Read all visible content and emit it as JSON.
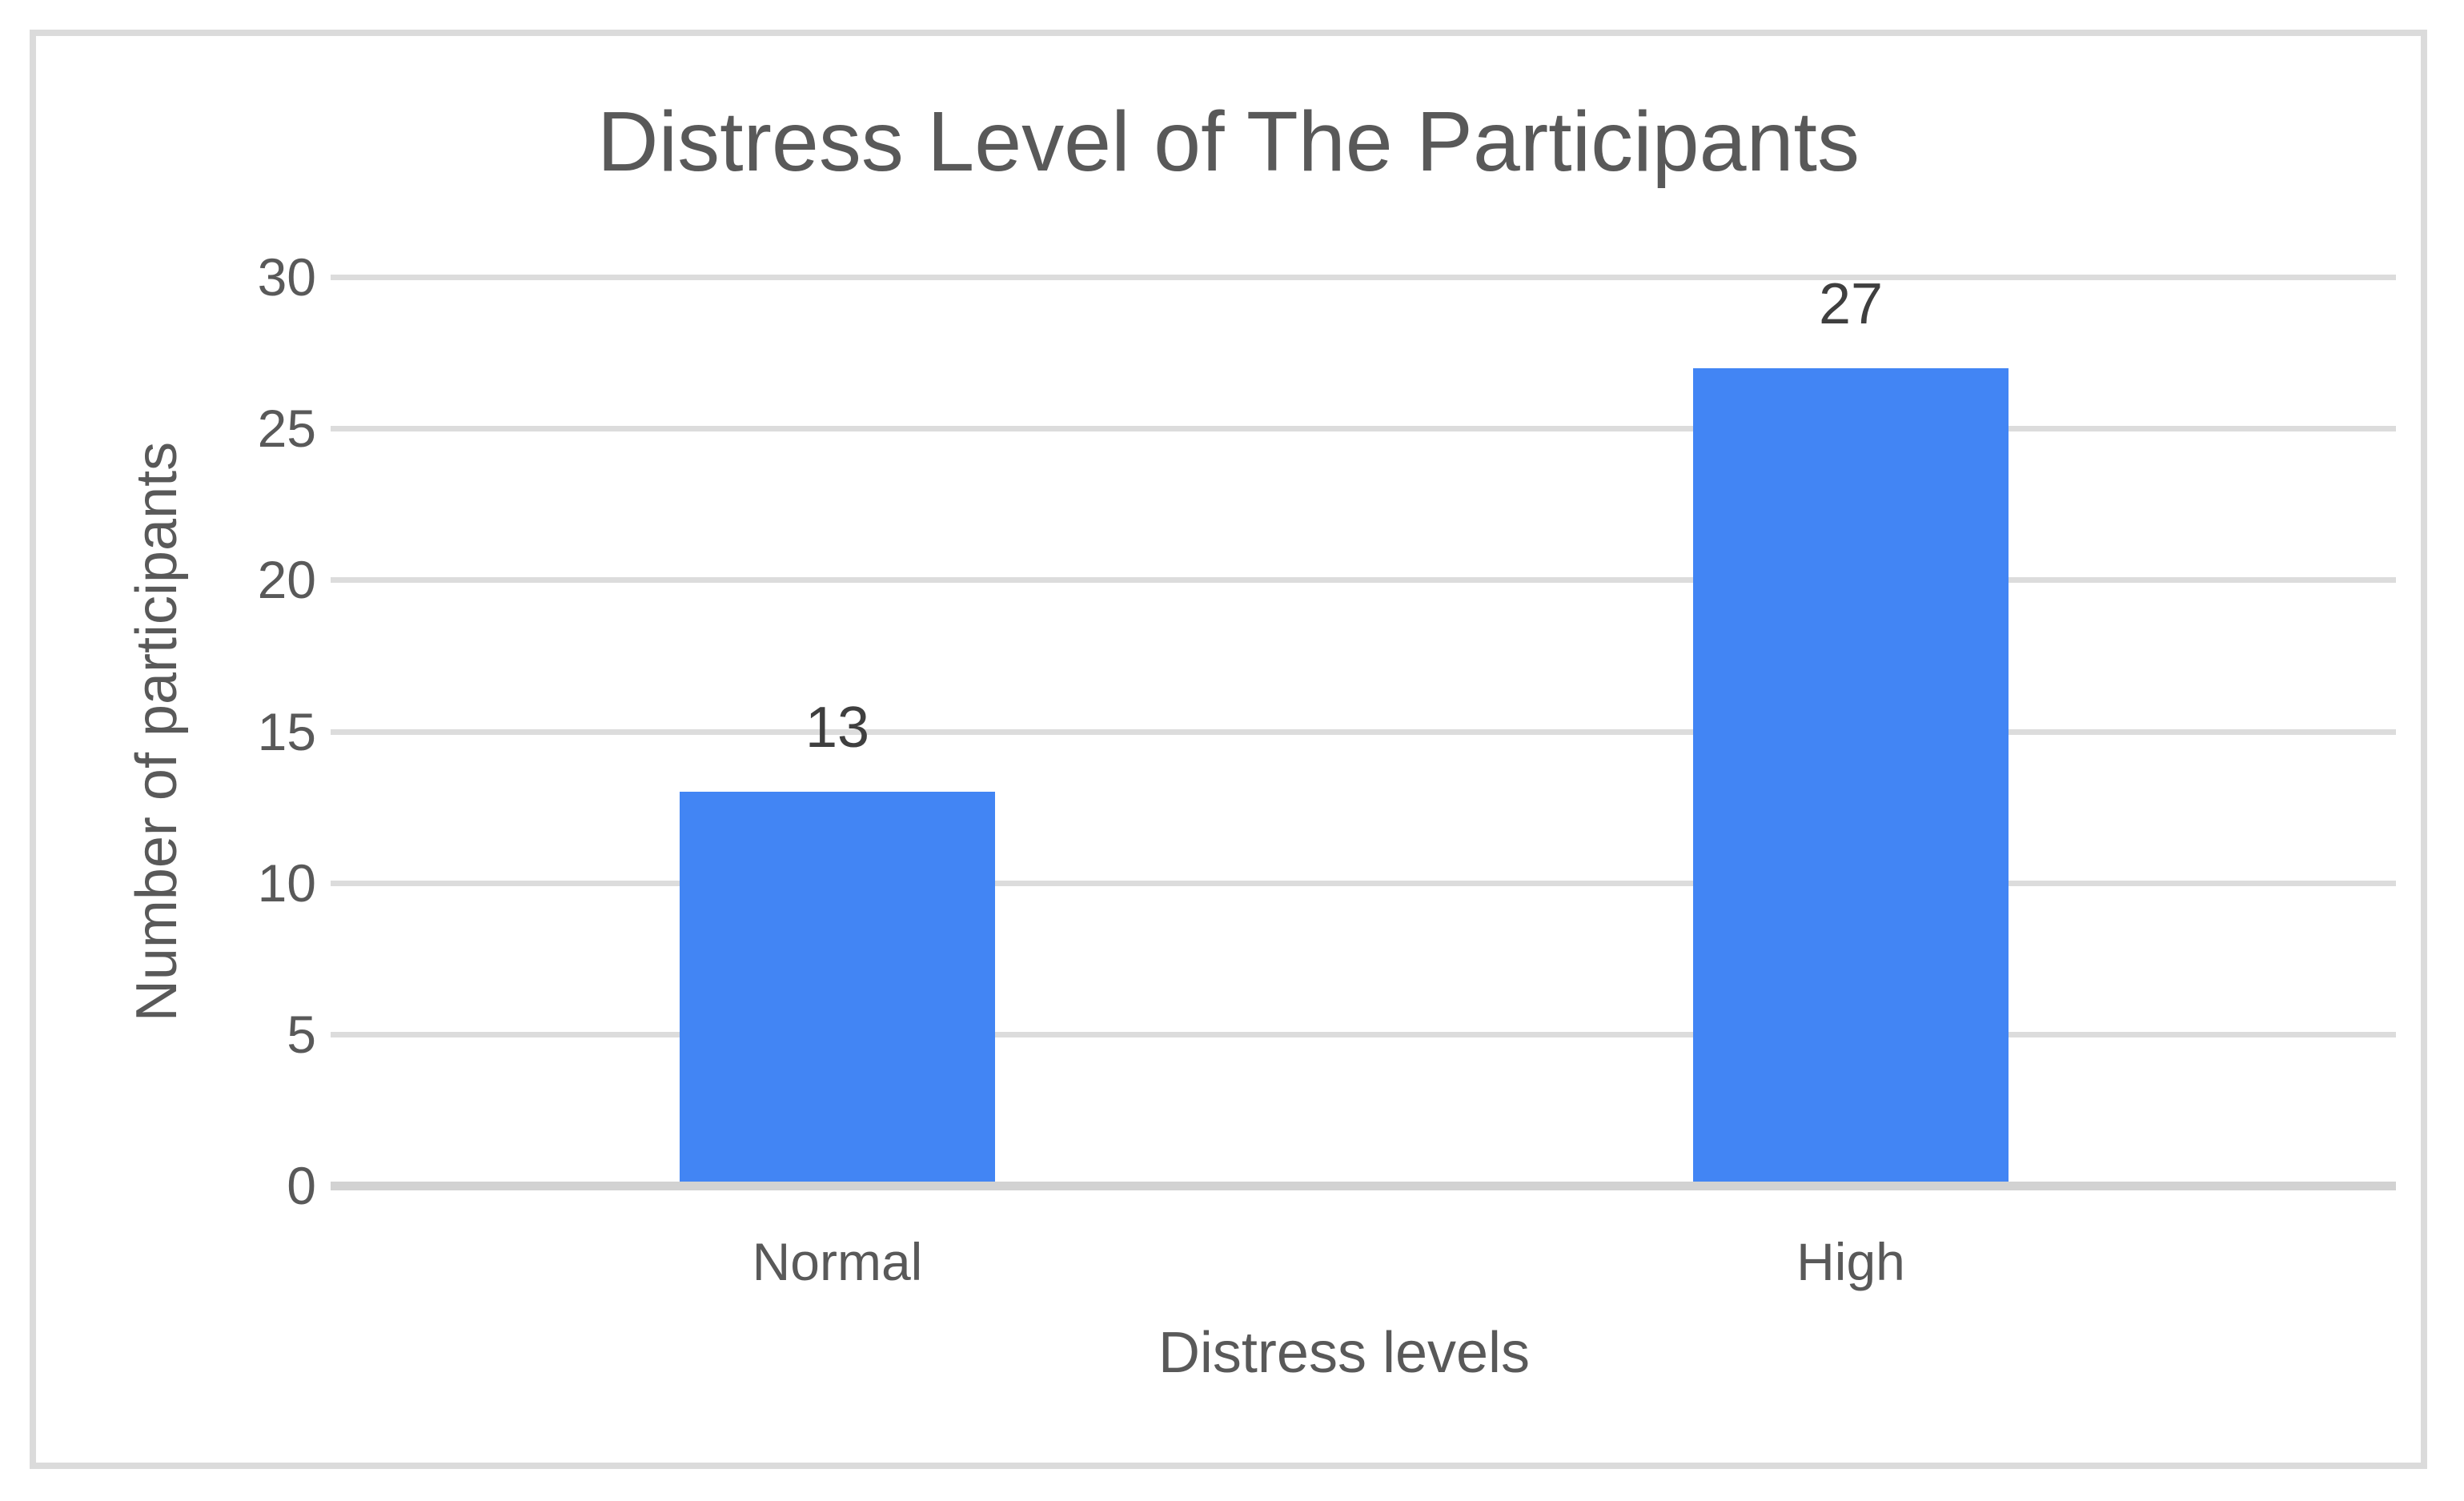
{
  "chart_data": {
    "type": "bar",
    "title": "Distress Level of The Participants",
    "xlabel": "Distress levels",
    "ylabel": "Number of participants",
    "categories": [
      "Normal",
      "High"
    ],
    "values": [
      13,
      27
    ],
    "data_labels": [
      "13",
      "27"
    ],
    "y_ticks": [
      0,
      5,
      10,
      15,
      20,
      25,
      30
    ],
    "ylim": [
      0,
      30
    ],
    "grid": "horizontal-only",
    "legend_position": "none",
    "colors": {
      "bar": "#4285F4",
      "gridline": "#DCDCDC",
      "axis_line": "#D2D2D2",
      "frame_border": "#DBDBDB",
      "title_text": "#595959",
      "axis_text": "#595959",
      "data_label_text": "#3F3F3F"
    }
  }
}
